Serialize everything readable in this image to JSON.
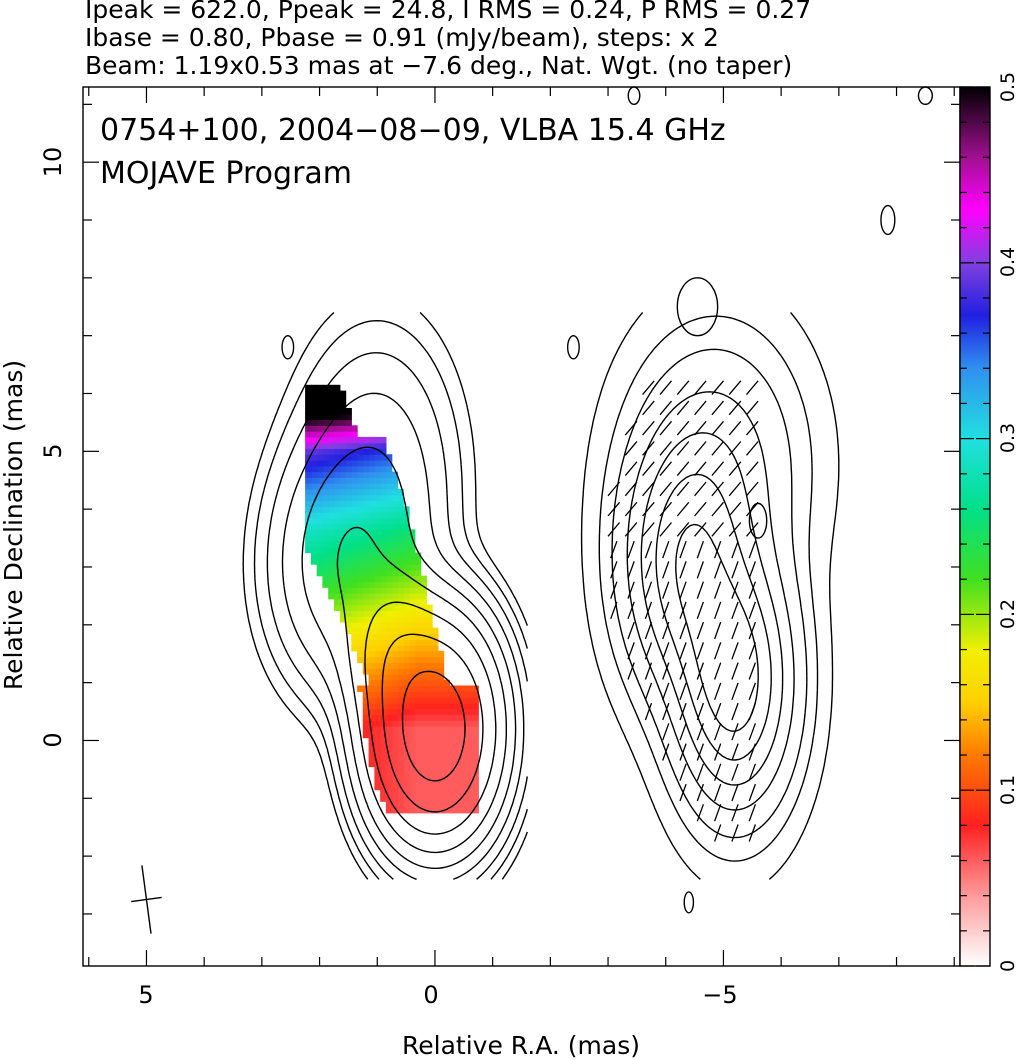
{
  "header": {
    "line1": "Ipeak = 622.0, Ppeak = 24.8, I RMS = 0.24, P RMS = 0.27",
    "line2": "Ibase = 0.80, Pbase = 0.91 (mJy/beam), steps: x 2",
    "line3": "Beam: 1.19x0.53 mas at −7.6 deg., Nat. Wgt. (no taper)"
  },
  "panel": {
    "title_line1": "0754+100, 2004−08−09, VLBA 15.4 GHz",
    "title_line2": "MOJAVE Program"
  },
  "chart_data": {
    "type": "heatmap",
    "description_axes": "radio contour map with fractional polarization colour scale",
    "xlabel": "Relative R.A. (mas)",
    "ylabel": "Relative Declination (mas)",
    "xlim": [
      6.1,
      -9.1
    ],
    "ylim": [
      -3.9,
      11.3
    ],
    "x_tick_labels": [
      {
        "value": 5,
        "label": "5"
      },
      {
        "value": 0,
        "label": "0"
      },
      {
        "value": -5,
        "label": "−5"
      }
    ],
    "y_tick_labels": [
      {
        "value": 0,
        "label": "0"
      },
      {
        "value": 5,
        "label": "5"
      },
      {
        "value": 10,
        "label": "10"
      }
    ],
    "colorbar": {
      "range": [
        0,
        0.5
      ],
      "tick_labels": [
        "0",
        "0.1",
        "0.2",
        "0.3",
        "0.4",
        "0.5"
      ],
      "colormap": [
        {
          "v": 0.0,
          "color": "#ffffff"
        },
        {
          "v": 0.04,
          "color": "#ff9a9a"
        },
        {
          "v": 0.08,
          "color": "#ff2020"
        },
        {
          "v": 0.12,
          "color": "#ff7a00"
        },
        {
          "v": 0.15,
          "color": "#ffd000"
        },
        {
          "v": 0.18,
          "color": "#f0f000"
        },
        {
          "v": 0.22,
          "color": "#40e020"
        },
        {
          "v": 0.26,
          "color": "#00e08a"
        },
        {
          "v": 0.3,
          "color": "#20e0e0"
        },
        {
          "v": 0.34,
          "color": "#3090f0"
        },
        {
          "v": 0.37,
          "color": "#2020e0"
        },
        {
          "v": 0.4,
          "color": "#8040e0"
        },
        {
          "v": 0.43,
          "color": "#ff00ff"
        },
        {
          "v": 0.46,
          "color": "#a01090"
        },
        {
          "v": 0.5,
          "color": "#000000"
        }
      ]
    },
    "image_peak_position": [
      0.0,
      0.2
    ],
    "secondary_component_position": [
      0.7,
      1.5
    ],
    "jet_component_position": [
      1.5,
      3.0
    ],
    "polarization_panel_offset_ra": -5.3,
    "beam": {
      "major_mas": 1.19,
      "minor_mas": 0.53,
      "pa_deg": -7.6
    }
  },
  "colors": {
    "contour": "#000000",
    "background": "#ffffff"
  }
}
